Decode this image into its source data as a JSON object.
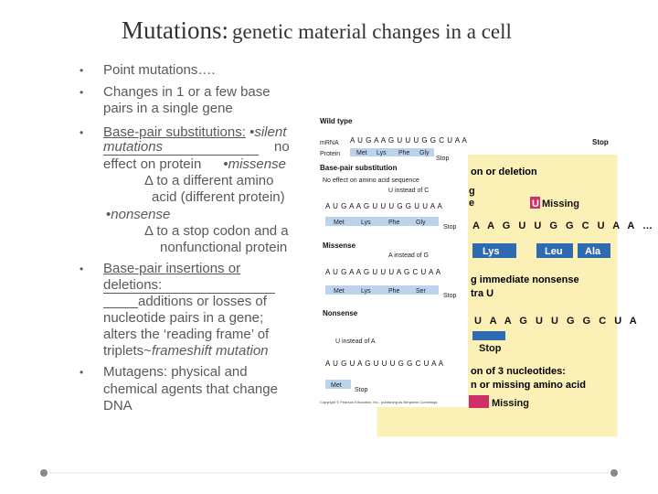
{
  "title": {
    "lead": "Mutations:",
    "rest": "genetic material changes in a cell"
  },
  "bullets": [
    [
      [
        "Point mutations…."
      ]
    ],
    [
      [
        "Changes in 1 or a few base"
      ],
      [
        "pairs in a single gene"
      ]
    ],
    [
      [
        "Base-pair substitutions:",
        " •",
        "silent"
      ],
      [
        "mutations",
        "no"
      ],
      [
        "effect on protein",
        "•",
        "missense"
      ],
      [
        "Δ to a different amino"
      ],
      [
        "acid (different protein)"
      ],
      [
        "•",
        "nonsense"
      ],
      [
        "Δ to a stop codon and a"
      ],
      [
        "nonfunctional protein"
      ]
    ],
    [
      [
        "Base-pair insertions or"
      ],
      [
        "deletions:"
      ],
      [
        "additions or losses of"
      ],
      [
        "nucleotide pairs in a gene;"
      ],
      [
        "alters the ‘reading frame’ of"
      ],
      [
        "triplets~",
        "frameshift mutation"
      ]
    ],
    [
      [
        "Mutagens: physical and"
      ],
      [
        "chemical agents that change"
      ],
      [
        "DNA"
      ]
    ]
  ],
  "figure": {
    "left": {
      "wild_type": "Wild type",
      "mrna": "mRNA",
      "protein": "Protein",
      "wt_row": "A U G A A G U U U G G C U A A",
      "wt_protein": [
        "Met",
        "Lys",
        "Phe",
        "Gly"
      ],
      "wt_stop": "Stop",
      "substitution": "Base-pair substitution",
      "no_effect": "No effect on amino acid sequence",
      "u_instead_c": "U instead of C",
      "row1": "A U G A A G U U U G G U U A A",
      "protein1": [
        "Met",
        "Lys",
        "Phe",
        "Gly"
      ],
      "stop1": "Stop",
      "missense": "Missense",
      "a_instead_g": "A instead of G",
      "row2": "A U G A A G U U U A G C U A A",
      "protein2": [
        "Met",
        "Lys",
        "Phe",
        "Ser"
      ],
      "stop2": "Stop",
      "nonsense": "Nonsense",
      "u_instead_a": "U instead of A",
      "row3": "A U G U A G U U U G G C U A A",
      "protein3": [
        "Met"
      ],
      "stop3": "Stop",
      "copyright": "Copyright © Pearson Education, Inc., publishing as Benjamin Cummings."
    },
    "right": {
      "stop_top": "Stop",
      "heading1": "on or deletion",
      "frag1": "g",
      "frag2": "e",
      "u": "U",
      "missing1": "Missing",
      "row1": "A A G U U G G C U A A …",
      "protein": [
        "Lys",
        "Leu",
        "Ala"
      ],
      "heading2": "g immediate nonsense",
      "frag3": "tra U",
      "row2": "U A A G U U G G C U A",
      "stop": "Stop",
      "heading3": "on of 3 nucleotides:",
      "heading4": "n or missing amino acid",
      "missing2": "Missing"
    }
  }
}
